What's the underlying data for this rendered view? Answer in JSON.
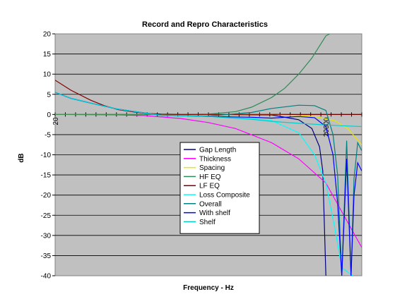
{
  "chart_data": {
    "type": "line",
    "title": "Record and Repro Characteristics",
    "xlabel": "Frequency - Hz",
    "ylabel": "dB",
    "xlim": [
      20,
      50000
    ],
    "x_tick_labels": [
      "20",
      "20000"
    ],
    "ylim": [
      -40,
      20
    ],
    "y_ticks": [
      20,
      15,
      10,
      5,
      0,
      -5,
      -10,
      -15,
      -20,
      -25,
      -30,
      -35,
      -40
    ],
    "grid": true,
    "legend_position": "center",
    "series": [
      {
        "name": "Gap Length",
        "color": "#000080",
        "x": [
          20,
          1000,
          5000,
          10000,
          14000,
          17000,
          18500,
          20000
        ],
        "y": [
          0,
          0,
          -0.1,
          -1.3,
          -3.5,
          -8,
          -14,
          -40
        ]
      },
      {
        "name": "Thickness",
        "color": "#ff00ff",
        "x": [
          20,
          100,
          200,
          500,
          1000,
          2000,
          5000,
          10000,
          20000,
          50000
        ],
        "y": [
          0,
          -0.1,
          -0.3,
          -1,
          -2,
          -3.5,
          -7,
          -11,
          -17,
          -33
        ]
      },
      {
        "name": "Spacing",
        "color": "#e8e800",
        "x": [
          20,
          5000,
          15000,
          25000,
          35000,
          50000
        ],
        "y": [
          0,
          0,
          -0.5,
          -1.5,
          -3.5,
          -7.5
        ]
      },
      {
        "name": "HF EQ",
        "color": "#2e8b57",
        "x": [
          20,
          500,
          1000,
          2000,
          3000,
          5000,
          7000,
          10000,
          14000,
          17000,
          20000,
          22000
        ],
        "y": [
          0,
          0,
          0.1,
          0.7,
          1.8,
          4.2,
          6.5,
          10,
          14,
          17,
          19.5,
          20
        ]
      },
      {
        "name": "LF EQ",
        "color": "#800000",
        "x": [
          20,
          30,
          50,
          70,
          100,
          150,
          200,
          300,
          500,
          1000,
          50000
        ],
        "y": [
          8.5,
          6,
          3.5,
          2.2,
          1.2,
          0.6,
          0.3,
          0.1,
          0,
          0,
          0
        ]
      },
      {
        "name": "Loss Composite",
        "color": "#00ffff",
        "x": [
          20,
          30,
          50,
          100,
          300,
          1000,
          3000,
          5000,
          10000,
          15000,
          20000,
          25000,
          30000,
          40000
        ],
        "y": [
          5.5,
          4,
          2.8,
          1.3,
          -0.2,
          -0.5,
          -1,
          -1.5,
          -4.5,
          -10,
          -17,
          -28,
          -38,
          -40
        ]
      },
      {
        "name": "Overall",
        "color": "#008080",
        "x": [
          20,
          30,
          50,
          100,
          300,
          1000,
          3000,
          5000,
          10000,
          15000,
          20000,
          24000,
          27000,
          30000,
          34000,
          38000,
          41000,
          45000,
          50000
        ],
        "y": [
          5.5,
          4,
          2.8,
          1.3,
          -0.2,
          -0.4,
          0.5,
          1.5,
          2.3,
          2.2,
          1,
          -5,
          -15,
          -40,
          -6.5,
          -40,
          -16,
          -7,
          -9
        ]
      },
      {
        "name": "With shelf",
        "color": "#0000ff",
        "x": [
          20,
          30,
          50,
          100,
          300,
          1000,
          3000,
          5000,
          10000,
          15000,
          20000,
          24000,
          27000,
          30000,
          34000,
          38000,
          41000,
          45000,
          50000
        ],
        "y": [
          5.5,
          4,
          2.8,
          1.3,
          -0.2,
          -0.5,
          -0.7,
          -0.9,
          -0.5,
          -0.8,
          -3,
          -10,
          -22,
          -40,
          -11,
          -40,
          -20,
          -12,
          -14
        ]
      },
      {
        "name": "Shelf",
        "color": "#00d0d0",
        "x": [
          20,
          30,
          50,
          100,
          300,
          1000,
          3000,
          5000,
          10000,
          20000,
          30000,
          50000
        ],
        "y": [
          5.5,
          4,
          2.8,
          1.3,
          -0.2,
          -0.5,
          -1.2,
          -1.7,
          -2.2,
          -2.6,
          -2.8,
          -3
        ]
      }
    ]
  }
}
